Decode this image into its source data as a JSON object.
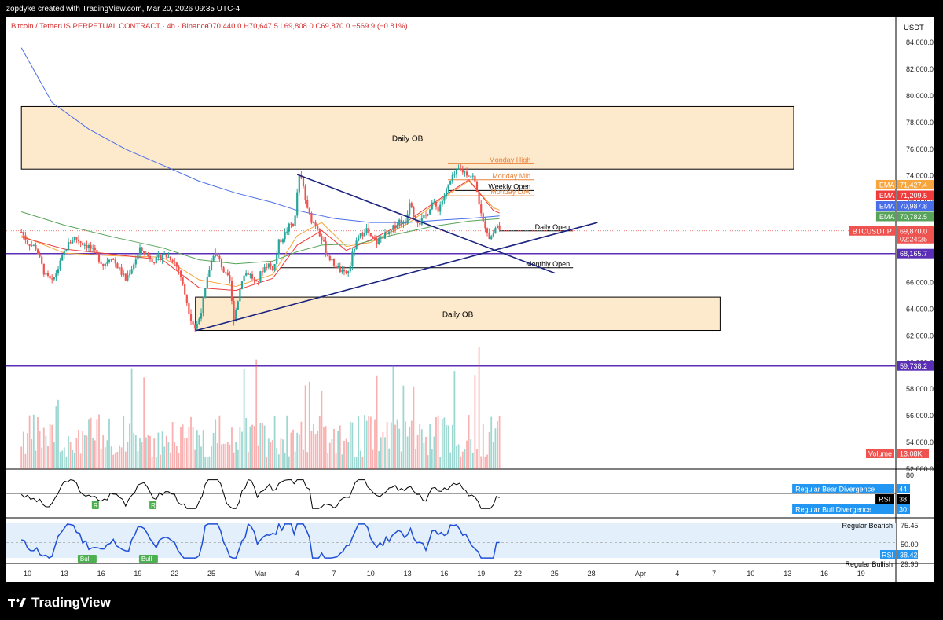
{
  "header": {
    "creator_text": "zopdyke created with TradingView.com, Mar 20, 2026 09:35 UTC-4"
  },
  "legend": {
    "symbol": "Bitcoin / TetherUS PERPETUAL CONTRACT · 4h · Binance",
    "ohlc": "O70,440.0  H70,647.5  L69,808.0  C69,870.0  −569.9 (−0.81%)"
  },
  "footer": {
    "brand": "TradingView"
  },
  "colors": {
    "up": "#26a69a",
    "down": "#ef5350",
    "ob_fill": "#fde9cc",
    "level_line": "#5b2fb5",
    "ema_orange": "#f7a53c",
    "ema_red": "#ef3b3b",
    "ema_blue": "#4a6ee8",
    "ema_green": "#57a35a",
    "trendline": "#1a237e",
    "rsi_line": "#000000",
    "rsi2_line": "#1f4fd6",
    "rsi2_band": "#e3f0fb"
  },
  "chart_data": [
    {
      "type": "line",
      "title": "BTCUSDT.P · 4h",
      "y_axis_unit": "USDT",
      "ylim": [
        52000,
        84800
      ],
      "y_ticks": [
        52000,
        54000,
        56000,
        58000,
        60000,
        62000,
        64000,
        66000,
        68000,
        70000,
        72000,
        74000,
        76000,
        78000,
        80000,
        82000,
        84000
      ],
      "y_tick_labels": [
        "52,000.0",
        "54,000.0",
        "56,000.0",
        "58,000.0",
        "60,000.0",
        "62,000.0",
        "64,000.0",
        "66,000.0",
        "68,000.0",
        "70,000.0",
        "72,000.0",
        "74,000.0",
        "76,000.0",
        "78,000.0",
        "80,000.0",
        "82,000.0",
        "84,000.0"
      ],
      "x_tick_labels": [
        "10",
        "13",
        "16",
        "19",
        "22",
        "25",
        "Mar",
        "4",
        "7",
        "10",
        "13",
        "16",
        "19",
        "22",
        "25",
        "28",
        "Apr",
        "4",
        "7",
        "10",
        "13",
        "16",
        "19"
      ],
      "x_tick_days": [
        -19,
        -16,
        -13,
        -10,
        -7,
        -4,
        0,
        3,
        6,
        9,
        12,
        15,
        18,
        21,
        24,
        27,
        31,
        34,
        37,
        40,
        43,
        46,
        49
      ],
      "x_date_anchor": "Feb 10 – Apr 19, 2026",
      "bars_per_day": 6,
      "last_candle_day": 19.5,
      "price_path": [
        [
          -19.5,
          69800
        ],
        [
          -19,
          69000
        ],
        [
          -18.3,
          68600
        ],
        [
          -17.6,
          66600
        ],
        [
          -17,
          66000
        ],
        [
          -16.4,
          67300
        ],
        [
          -15.8,
          68700
        ],
        [
          -15.2,
          69400
        ],
        [
          -14.6,
          69000
        ],
        [
          -14,
          68700
        ],
        [
          -13.4,
          68100
        ],
        [
          -12.8,
          67300
        ],
        [
          -12.2,
          68000
        ],
        [
          -11.6,
          67100
        ],
        [
          -11,
          66200
        ],
        [
          -10.4,
          67300
        ],
        [
          -9.8,
          68500
        ],
        [
          -9.2,
          68000
        ],
        [
          -8.6,
          67600
        ],
        [
          -8,
          68100
        ],
        [
          -7.2,
          67800
        ],
        [
          -6.6,
          66800
        ],
        [
          -6.1,
          64900
        ],
        [
          -5.7,
          63400
        ],
        [
          -5.3,
          62500
        ],
        [
          -5,
          63300
        ],
        [
          -4.6,
          64900
        ],
        [
          -4.2,
          66900
        ],
        [
          -3.8,
          68300
        ],
        [
          -3.3,
          67600
        ],
        [
          -2.9,
          66600
        ],
        [
          -2.5,
          66100
        ],
        [
          -2.2,
          63200
        ],
        [
          -1.9,
          64400
        ],
        [
          -1.5,
          66300
        ],
        [
          -1.1,
          66800
        ],
        [
          -0.7,
          66400
        ],
        [
          -0.3,
          65800
        ],
        [
          0.1,
          66900
        ],
        [
          0.6,
          67400
        ],
        [
          1.1,
          67000
        ],
        [
          1.5,
          69000
        ],
        [
          1.9,
          69500
        ],
        [
          2.4,
          70300
        ],
        [
          2.8,
          70500
        ],
        [
          3.1,
          73900
        ],
        [
          3.4,
          73700
        ],
        [
          3.8,
          71500
        ],
        [
          4.2,
          70600
        ],
        [
          4.6,
          70300
        ],
        [
          5,
          69300
        ],
        [
          5.4,
          68200
        ],
        [
          5.8,
          67600
        ],
        [
          6.3,
          67100
        ],
        [
          6.8,
          66600
        ],
        [
          7.2,
          66800
        ],
        [
          7.6,
          68500
        ],
        [
          8.1,
          69400
        ],
        [
          8.6,
          70100
        ],
        [
          9,
          69300
        ],
        [
          9.5,
          69000
        ],
        [
          10,
          69500
        ],
        [
          10.5,
          69600
        ],
        [
          11,
          70300
        ],
        [
          11.4,
          70700
        ],
        [
          11.8,
          70300
        ],
        [
          12.2,
          72300
        ],
        [
          12.6,
          70900
        ],
        [
          13,
          70500
        ],
        [
          13.5,
          71000
        ],
        [
          14,
          72000
        ],
        [
          14.5,
          71500
        ],
        [
          15,
          72500
        ],
        [
          15.4,
          73400
        ],
        [
          15.8,
          74000
        ],
        [
          16.2,
          74500
        ],
        [
          16.6,
          74300
        ],
        [
          17,
          74100
        ],
        [
          17.4,
          73900
        ],
        [
          17.8,
          72200
        ],
        [
          18.1,
          70500
        ],
        [
          18.4,
          70200
        ],
        [
          18.7,
          69300
        ],
        [
          19,
          69700
        ],
        [
          19.3,
          70400
        ],
        [
          19.5,
          69870
        ]
      ],
      "price_labels": [
        {
          "price": 71427.4,
          "label": "71,427.4",
          "tag": "EMA",
          "color": "#f7a53c"
        },
        {
          "price": 71209.5,
          "label": "71,209.5",
          "tag": "EMA",
          "color": "#ef3b3b"
        },
        {
          "price": 70987.8,
          "label": "70,987.8",
          "tag": "EMA",
          "color": "#4a6ee8"
        },
        {
          "price": 70782.5,
          "label": "70,782.5",
          "tag": "EMA",
          "color": "#57a35a"
        },
        {
          "price": 69870.0,
          "label": "69,870.0",
          "tag": "BTCUSDT.P",
          "sublabel": "02:24:25",
          "color": "#ef5350"
        },
        {
          "price": 68165.7,
          "label": "68,165.7",
          "tag": "",
          "color": "#5b2fb5"
        },
        {
          "price": 59738.2,
          "label": "59,738.2",
          "tag": "",
          "color": "#5b2fb5"
        }
      ],
      "zones": [
        {
          "label": "Daily OB",
          "top": 79200,
          "bottom": 74500,
          "from_day": -19.5,
          "to_day": 43.5
        },
        {
          "label": "Daily OB",
          "top": 64900,
          "bottom": 62400,
          "from_day": -5.3,
          "to_day": 37.5
        }
      ],
      "horizontal_levels": [
        {
          "label": "",
          "price": 68165.7,
          "color": "#5b2fb5"
        },
        {
          "label": "",
          "price": 59738.2,
          "color": "#5b2fb5"
        }
      ],
      "key_levels": [
        {
          "label": "Monday High",
          "price": 74900,
          "from_day": 15.3,
          "to_day": 22.3,
          "color": "#e8823a"
        },
        {
          "label": "Monday Mid",
          "price": 73700,
          "from_day": 15.3,
          "to_day": 22.3,
          "color": "#e8823a"
        },
        {
          "label": "Weekly Open",
          "price": 72900,
          "from_day": 15.3,
          "to_day": 22.3,
          "color": "#000000"
        },
        {
          "label": "Monday Low",
          "price": 72500,
          "from_day": 15.3,
          "to_day": 22.3,
          "color": "#e8823a"
        },
        {
          "label": "Daily Open",
          "price": 69870,
          "from_day": 19.5,
          "to_day": 25.5,
          "color": "#000000"
        },
        {
          "label": "Monthly Open",
          "price": 67100,
          "from_day": 1.6,
          "to_day": 25.5,
          "color": "#000000"
        }
      ],
      "trendlines": [
        {
          "from": [
            -5.2,
            62400
          ],
          "to": [
            27.5,
            70500
          ]
        },
        {
          "from": [
            3.0,
            74100
          ],
          "to": [
            24.0,
            66700
          ]
        }
      ],
      "ema_series": [
        {
          "name": "EMA",
          "color": "#f7a53c",
          "points": [
            [
              -19.5,
              69500
            ],
            [
              -16,
              68200
            ],
            [
              -12,
              68000
            ],
            [
              -8,
              67900
            ],
            [
              -5,
              66200
            ],
            [
              -2,
              65700
            ],
            [
              1,
              66600
            ],
            [
              3,
              69500
            ],
            [
              5,
              70500
            ],
            [
              7,
              68700
            ],
            [
              9,
              69000
            ],
            [
              12,
              70400
            ],
            [
              15,
              72400
            ],
            [
              17,
              73600
            ],
            [
              19,
              71600
            ],
            [
              19.5,
              71427
            ]
          ]
        },
        {
          "name": "EMA",
          "color": "#ef3b3b",
          "points": [
            [
              -19.5,
              69400
            ],
            [
              -16,
              68500
            ],
            [
              -12,
              68100
            ],
            [
              -8,
              67700
            ],
            [
              -5,
              65600
            ],
            [
              -2,
              65400
            ],
            [
              1,
              66300
            ],
            [
              3,
              68800
            ],
            [
              5,
              69900
            ],
            [
              7,
              68400
            ],
            [
              9,
              69200
            ],
            [
              12,
              70600
            ],
            [
              15,
              72500
            ],
            [
              17,
              73700
            ],
            [
              19,
              71400
            ],
            [
              19.5,
              71209
            ]
          ]
        },
        {
          "name": "EMA",
          "color": "#57a35a",
          "points": [
            [
              -19.5,
              71300
            ],
            [
              -16,
              70300
            ],
            [
              -12,
              69400
            ],
            [
              -8,
              68600
            ],
            [
              -5,
              67700
            ],
            [
              -2,
              67400
            ],
            [
              1,
              67600
            ],
            [
              3,
              68300
            ],
            [
              5,
              68800
            ],
            [
              8,
              68900
            ],
            [
              11,
              69600
            ],
            [
              14,
              70200
            ],
            [
              17,
              70600
            ],
            [
              19.5,
              70782
            ]
          ]
        },
        {
          "name": "EMA",
          "color": "#4a6ee8",
          "points": [
            [
              -19.5,
              83600
            ],
            [
              -17,
              79500
            ],
            [
              -14,
              77500
            ],
            [
              -11,
              76000
            ],
            [
              -8,
              74800
            ],
            [
              -5,
              73600
            ],
            [
              -2,
              72700
            ],
            [
              1,
              72000
            ],
            [
              3,
              71400
            ],
            [
              6,
              70800
            ],
            [
              9,
              70500
            ],
            [
              12,
              70500
            ],
            [
              15,
              70700
            ],
            [
              17,
              70800
            ],
            [
              19.5,
              70988
            ]
          ]
        }
      ],
      "volume": {
        "label": "Volume",
        "value_label": "13.08K"
      }
    },
    {
      "type": "line",
      "title": "RSI",
      "ylim": [
        20,
        80
      ],
      "y_tick_labels": [
        "80"
      ],
      "level": 50,
      "value": 38,
      "labels": [
        {
          "text": "Regular Bear Divergence",
          "value": "44"
        },
        {
          "text": "RSI",
          "value": "38"
        },
        {
          "text": "Regular Bull Divergence",
          "value": "30"
        }
      ],
      "markers": [
        {
          "text": "R",
          "day": -13.5
        },
        {
          "text": "R",
          "day": -8.8
        }
      ]
    },
    {
      "type": "line",
      "title": "RSI",
      "ylim": [
        25,
        80
      ],
      "levels": [
        {
          "label": "Regular Bearish",
          "value": "75.45"
        },
        {
          "label": "",
          "value": "50.00"
        },
        {
          "label": "Regular Bullish",
          "value": "29.96"
        }
      ],
      "value": 38.42,
      "value_label": "38.42",
      "markers": [
        {
          "text": "Bull",
          "day": -14.2
        },
        {
          "text": "Bull",
          "day": -9.2
        }
      ]
    }
  ]
}
